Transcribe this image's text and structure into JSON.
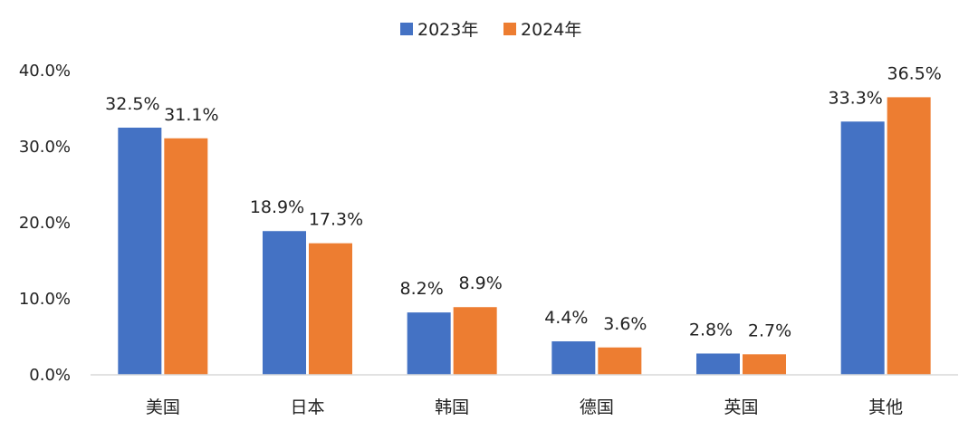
{
  "chart_data": {
    "type": "bar",
    "categories": [
      "美国",
      "日本",
      "韩国",
      "德国",
      "英国",
      "其他"
    ],
    "series": [
      {
        "name": "2023年",
        "color": "#4472C4",
        "values": [
          32.5,
          18.9,
          8.2,
          4.4,
          2.8,
          33.3
        ],
        "labels": [
          "32.5%",
          "18.9%",
          "8.2%",
          "4.4%",
          "2.8%",
          "33.3%"
        ]
      },
      {
        "name": "2024年",
        "color": "#ED7D31",
        "values": [
          31.1,
          17.3,
          8.9,
          3.6,
          2.7,
          36.5
        ],
        "labels": [
          "31.1%",
          "17.3%",
          "8.9%",
          "3.6%",
          "2.7%",
          "36.5%"
        ]
      }
    ],
    "y_ticks": [
      "0.0%",
      "10.0%",
      "20.0%",
      "30.0%",
      "40.0%"
    ],
    "ylim": [
      0,
      40
    ],
    "y_unit": "%",
    "grid": false,
    "legend_position": "top-center",
    "axis_color": "#D9D9D9"
  }
}
